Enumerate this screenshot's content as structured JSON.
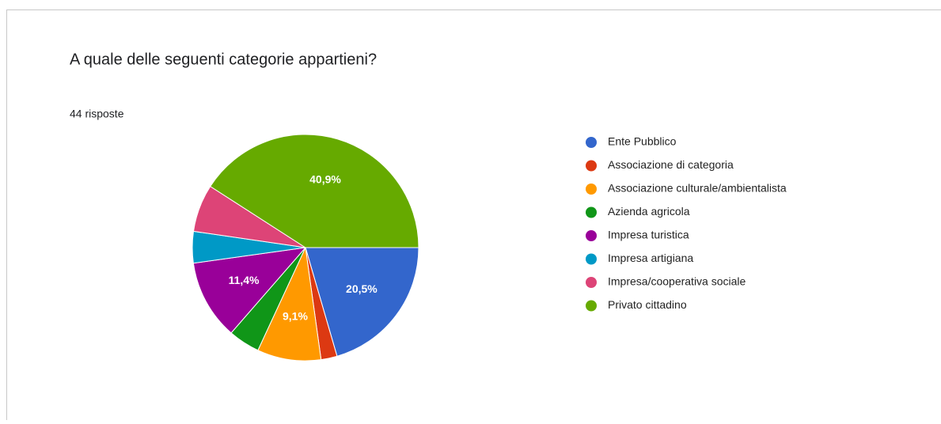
{
  "chart_data": {
    "type": "pie",
    "title": "A quale delle seguenti categorie appartieni?",
    "subtitle": "44 risposte",
    "categories": [
      "Ente Pubblico",
      "Associazione di categoria",
      "Associazione culturale/ambientalista",
      "Azienda agricola",
      "Impresa turistica",
      "Impresa artigiana",
      "Impresa/cooperativa sociale",
      "Privato cittadino"
    ],
    "values": [
      20.5,
      2.3,
      9.1,
      4.5,
      11.4,
      4.5,
      6.8,
      40.9
    ],
    "value_labels": [
      "20,5%",
      null,
      "9,1%",
      null,
      "11,4%",
      null,
      null,
      "40,9%"
    ],
    "colors": [
      "#3366cc",
      "#dc3912",
      "#ff9900",
      "#109618",
      "#990099",
      "#0099c6",
      "#dd4477",
      "#66aa00"
    ],
    "legend": "right"
  }
}
